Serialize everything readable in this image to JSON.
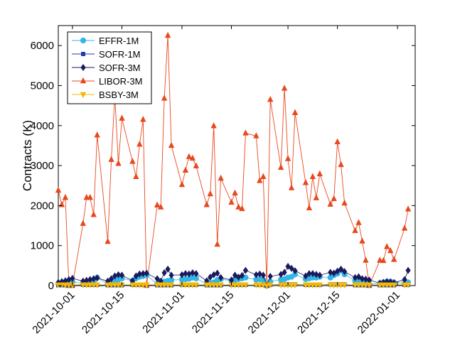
{
  "chart_data": {
    "type": "line",
    "title": "",
    "xlabel": "",
    "ylabel": "Contracts (K)",
    "x_axis": "dates",
    "xlim": [
      "2021-09-27",
      "2022-01-06"
    ],
    "ylim": [
      0,
      6500
    ],
    "yticks": [
      0,
      1000,
      2000,
      3000,
      4000,
      5000,
      6000
    ],
    "xticks": [
      "2021-10-01",
      "2021-10-15",
      "2021-11-01",
      "2021-11-15",
      "2021-12-01",
      "2021-12-15",
      "2022-01-01"
    ],
    "grid": false,
    "legend_position": "top-left",
    "colors": {
      "EFFR-1M": "#33b5e5",
      "SOFR-1M": "#1f3fa6",
      "SOFR-3M": "#1a1a5e",
      "LIBOR-3M": "#e8481e",
      "BSBY-3M": "#f5b800"
    },
    "markers": {
      "EFFR-1M": "circle",
      "SOFR-1M": "square",
      "SOFR-3M": "diamond",
      "LIBOR-3M": "triangle-up",
      "BSBY-3M": "triangle-down"
    },
    "x": [
      "2021-09-27",
      "2021-09-28",
      "2021-09-29",
      "2021-09-30",
      "2021-10-01",
      "2021-10-04",
      "2021-10-05",
      "2021-10-06",
      "2021-10-07",
      "2021-10-08",
      "2021-10-11",
      "2021-10-12",
      "2021-10-13",
      "2021-10-14",
      "2021-10-15",
      "2021-10-18",
      "2021-10-19",
      "2021-10-20",
      "2021-10-21",
      "2021-10-22",
      "2021-10-25",
      "2021-10-26",
      "2021-10-27",
      "2021-10-28",
      "2021-10-29",
      "2021-11-01",
      "2021-11-02",
      "2021-11-03",
      "2021-11-04",
      "2021-11-05",
      "2021-11-08",
      "2021-11-09",
      "2021-11-10",
      "2021-11-11",
      "2021-11-12",
      "2021-11-15",
      "2021-11-16",
      "2021-11-17",
      "2021-11-18",
      "2021-11-19",
      "2021-11-22",
      "2021-11-23",
      "2021-11-24",
      "2021-11-25",
      "2021-11-26",
      "2021-11-29",
      "2021-11-30",
      "2021-12-01",
      "2021-12-02",
      "2021-12-03",
      "2021-12-06",
      "2021-12-07",
      "2021-12-08",
      "2021-12-09",
      "2021-12-10",
      "2021-12-13",
      "2021-12-14",
      "2021-12-15",
      "2021-12-16",
      "2021-12-17",
      "2021-12-20",
      "2021-12-21",
      "2021-12-22",
      "2021-12-23",
      "2021-12-24",
      "2021-12-27",
      "2021-12-28",
      "2021-12-29",
      "2021-12-30",
      "2021-12-31",
      "2022-01-03",
      "2022-01-04"
    ],
    "series": [
      {
        "name": "EFFR-1M",
        "values": [
          50,
          60,
          70,
          80,
          90,
          60,
          70,
          80,
          90,
          200,
          40,
          100,
          120,
          150,
          180,
          120,
          180,
          220,
          240,
          260,
          40,
          80,
          100,
          120,
          140,
          150,
          160,
          170,
          200,
          180,
          40,
          60,
          80,
          140,
          160,
          120,
          140,
          160,
          180,
          200,
          150,
          160,
          140,
          0,
          100,
          150,
          160,
          200,
          220,
          280,
          160,
          180,
          200,
          200,
          220,
          200,
          260,
          300,
          380,
          280,
          120,
          140,
          150,
          120,
          40,
          60,
          80,
          100,
          100,
          80,
          60,
          80
        ]
      },
      {
        "name": "SOFR-1M",
        "values": [
          10,
          10,
          10,
          10,
          10,
          20,
          20,
          20,
          20,
          20,
          10,
          10,
          10,
          10,
          10,
          20,
          20,
          20,
          20,
          20,
          10,
          10,
          10,
          10,
          10,
          20,
          20,
          20,
          20,
          20,
          10,
          10,
          10,
          10,
          10,
          20,
          20,
          20,
          20,
          20,
          20,
          20,
          20,
          0,
          20,
          30,
          30,
          30,
          30,
          30,
          20,
          20,
          20,
          20,
          20,
          30,
          30,
          30,
          30,
          30,
          10,
          10,
          10,
          10,
          10,
          10,
          10,
          10,
          10,
          10,
          20,
          20
        ]
      },
      {
        "name": "SOFR-3M",
        "values": [
          80,
          100,
          120,
          150,
          180,
          110,
          130,
          150,
          170,
          190,
          110,
          170,
          240,
          270,
          260,
          120,
          240,
          290,
          300,
          310,
          170,
          110,
          320,
          410,
          260,
          270,
          300,
          290,
          320,
          300,
          120,
          210,
          270,
          310,
          200,
          140,
          260,
          210,
          250,
          380,
          270,
          290,
          260,
          0,
          230,
          280,
          330,
          480,
          430,
          370,
          240,
          300,
          300,
          280,
          260,
          330,
          310,
          360,
          410,
          350,
          200,
          220,
          170,
          160,
          140,
          60,
          80,
          100,
          90,
          70,
          150,
          380
        ]
      },
      {
        "name": "LIBOR-3M",
        "values": [
          2380,
          2020,
          2200,
          0,
          0,
          1550,
          2200,
          2200,
          1770,
          3760,
          1100,
          3150,
          4750,
          3050,
          4180,
          3100,
          2720,
          3530,
          4150,
          0,
          2010,
          1960,
          4680,
          6250,
          3500,
          2520,
          2880,
          3220,
          3180,
          2990,
          2020,
          2290,
          3990,
          1030,
          2680,
          2080,
          2310,
          1960,
          1920,
          3810,
          3740,
          2620,
          2720,
          0,
          4650,
          2950,
          4930,
          3170,
          2440,
          4320,
          2570,
          1940,
          2720,
          2190,
          2790,
          2030,
          2170,
          3590,
          3020,
          2060,
          1370,
          1570,
          1110,
          630,
          0,
          630,
          620,
          970,
          870,
          650,
          1430,
          1910
        ]
      },
      {
        "name": "BSBY-3M",
        "values": [
          20,
          20,
          20,
          20,
          20,
          20,
          20,
          20,
          20,
          20,
          20,
          20,
          20,
          20,
          20,
          20,
          20,
          20,
          20,
          20,
          20,
          20,
          20,
          20,
          20,
          20,
          20,
          20,
          20,
          20,
          20,
          20,
          20,
          20,
          20,
          20,
          20,
          20,
          20,
          20,
          20,
          20,
          20,
          0,
          20,
          20,
          20,
          20,
          20,
          20,
          20,
          20,
          20,
          20,
          20,
          20,
          20,
          20,
          20,
          20,
          20,
          20,
          20,
          20,
          20,
          20,
          20,
          20,
          20,
          20,
          20,
          20
        ]
      }
    ]
  }
}
